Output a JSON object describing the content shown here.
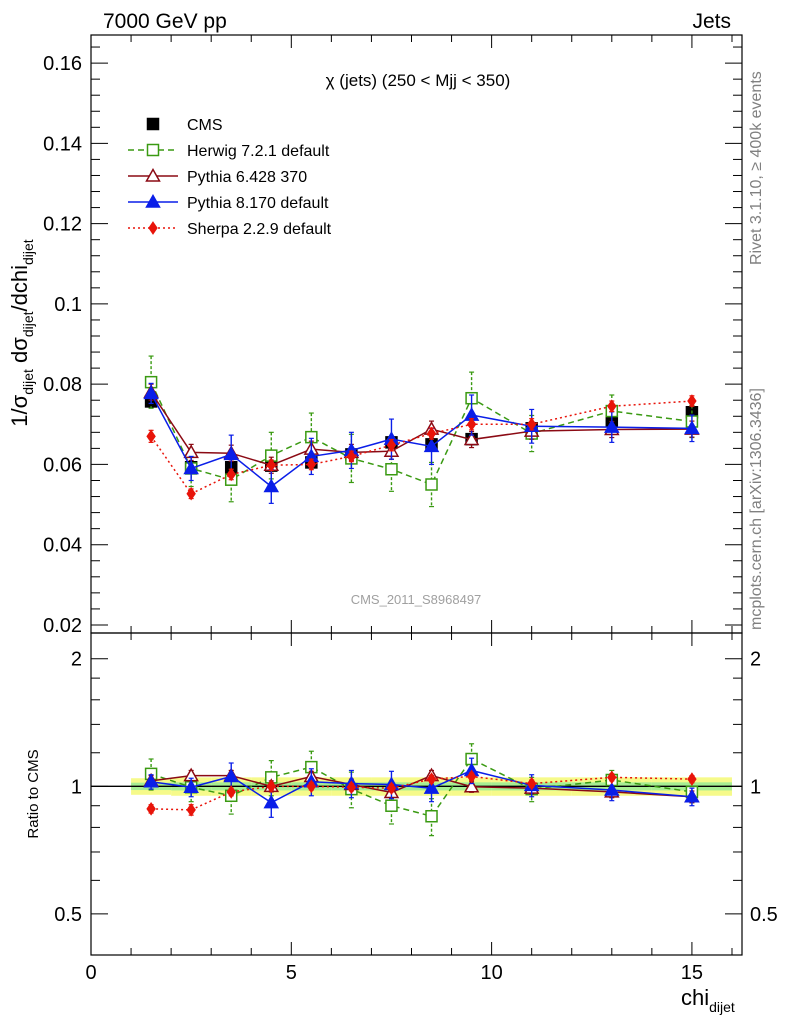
{
  "header": {
    "energy_label": "7000 GeV pp",
    "category_label": "Jets"
  },
  "side_labels": {
    "rivet": "Rivet 3.1.10, ≥ 400k events",
    "mcplots": "mcplots.cern.ch [arXiv:1306.3436]"
  },
  "chart_data": [
    {
      "type": "line",
      "title": "χ (jets) (250 < Mjj <  350)",
      "watermark": "CMS_2011_S8968497",
      "ylabel": {
        "prefix": "1/σ",
        "prefix_sub": "dijet",
        "mid": " dσ",
        "mid_sub": "dijet",
        "suffix": "/dchi",
        "suffix_sub": "dijet"
      },
      "xlim": [
        0,
        16.25
      ],
      "ylim": [
        0.018,
        0.167
      ],
      "yticks": [
        0.02,
        0.04,
        0.06,
        0.08,
        0.1,
        0.12,
        0.14,
        0.16
      ],
      "ytick_labels": [
        "0.02",
        "0.04",
        "0.06",
        "0.08",
        "0.1",
        "0.12",
        "0.14",
        "0.16"
      ],
      "x": [
        1.5,
        2.5,
        3.5,
        4.5,
        5.5,
        6.5,
        7.5,
        8.5,
        9.5,
        11,
        13,
        15
      ],
      "series": [
        {
          "name": "CMS",
          "color": "#000000",
          "marker": "square-filled",
          "dash": "none",
          "values": [
            0.0757,
            0.0593,
            0.0593,
            0.0597,
            0.0605,
            0.0625,
            0.0655,
            0.065,
            0.0663,
            0.069,
            0.0708,
            0.073
          ],
          "errors": [
            0.0015,
            0.0013,
            0.0013,
            0.0013,
            0.0013,
            0.0014,
            0.0014,
            0.0014,
            0.0014,
            0.0015,
            0.0015,
            0.0016
          ]
        },
        {
          "name": "Herwig 7.2.1 default",
          "color": "#3a9a12",
          "marker": "square-open",
          "dash": "6,4",
          "values": [
            0.0805,
            0.059,
            0.0562,
            0.0622,
            0.0668,
            0.0615,
            0.0588,
            0.055,
            0.0765,
            0.0677,
            0.0733,
            0.0707
          ],
          "errors": [
            0.0065,
            0.0045,
            0.0055,
            0.0058,
            0.006,
            0.006,
            0.0055,
            0.0055,
            0.0065,
            0.0045,
            0.004,
            0.004
          ]
        },
        {
          "name": "Pythia 6.428 370",
          "color": "#8b0a14",
          "marker": "triangle-open",
          "dash": "none",
          "values": [
            0.078,
            0.063,
            0.0628,
            0.0598,
            0.0638,
            0.063,
            0.0633,
            0.0688,
            0.0662,
            0.0683,
            0.0687,
            0.0688
          ],
          "errors": [
            0.002,
            0.002,
            0.002,
            0.002,
            0.002,
            0.002,
            0.002,
            0.002,
            0.002,
            0.002,
            0.002,
            0.002
          ]
        },
        {
          "name": "Pythia 8.170 default",
          "color": "#0a1ee8",
          "marker": "triangle-filled",
          "dash": "none",
          "values": [
            0.0777,
            0.059,
            0.0625,
            0.0545,
            0.062,
            0.0635,
            0.0663,
            0.0645,
            0.0723,
            0.0695,
            0.0693,
            0.069
          ],
          "errors": [
            0.0025,
            0.003,
            0.0048,
            0.0042,
            0.0045,
            0.0045,
            0.005,
            0.0045,
            0.005,
            0.0042,
            0.0038,
            0.0033
          ]
        },
        {
          "name": "Sherpa 2.2.9 default",
          "color": "#e8140a",
          "marker": "diamond-filled",
          "dash": "2,3",
          "values": [
            0.067,
            0.0527,
            0.0575,
            0.0598,
            0.06,
            0.062,
            0.0648,
            0.0677,
            0.07,
            0.07,
            0.0745,
            0.0758
          ],
          "errors": [
            0.0015,
            0.0012,
            0.0013,
            0.0013,
            0.0013,
            0.0013,
            0.0014,
            0.0014,
            0.0014,
            0.0014,
            0.0013,
            0.0013
          ]
        }
      ]
    },
    {
      "type": "line",
      "ylabel": "Ratio to CMS",
      "xlabel": "chi",
      "xlabel_sub": "dijet",
      "xlim": [
        0,
        16.25
      ],
      "ylim": [
        0.4,
        2.3
      ],
      "y_scale": "log",
      "yticks": [
        0.5,
        1,
        2
      ],
      "ytick_labels": [
        "0.5",
        "1",
        "2"
      ],
      "xticks": [
        0,
        5,
        10,
        15
      ],
      "xtick_labels": [
        "0",
        "5",
        "10",
        "15"
      ],
      "x": [
        1.5,
        2.5,
        3.5,
        4.5,
        5.5,
        6.5,
        7.5,
        8.5,
        9.5,
        11,
        13,
        15
      ],
      "x_edges": [
        1,
        2,
        3,
        4,
        5,
        6,
        7,
        8,
        9,
        10,
        12,
        14,
        16
      ],
      "band_inner": [
        0.02,
        0.022,
        0.022,
        0.022,
        0.022,
        0.022,
        0.022,
        0.022,
        0.022,
        0.022,
        0.022,
        0.022
      ],
      "band_outer": [
        0.045,
        0.05,
        0.05,
        0.05,
        0.05,
        0.05,
        0.05,
        0.05,
        0.05,
        0.05,
        0.05,
        0.05
      ],
      "series": [
        {
          "name": "Herwig 7.2.1 default",
          "color": "#3a9a12",
          "marker": "square-open",
          "dash": "6,4",
          "values": [
            1.07,
            0.995,
            0.95,
            1.05,
            1.11,
            0.985,
            0.9,
            0.85,
            1.16,
            0.985,
            1.035,
            0.97
          ],
          "errors": [
            0.09,
            0.075,
            0.09,
            0.1,
            0.1,
            0.095,
            0.085,
            0.085,
            0.1,
            0.065,
            0.055,
            0.055
          ]
        },
        {
          "name": "Pythia 6.428 370",
          "color": "#8b0a14",
          "marker": "triangle-open",
          "dash": "none",
          "values": [
            1.03,
            1.06,
            1.06,
            1.0,
            1.055,
            1.01,
            0.967,
            1.06,
            0.998,
            0.99,
            0.97,
            0.945
          ],
          "errors": [
            0.03,
            0.03,
            0.03,
            0.03,
            0.03,
            0.03,
            0.03,
            0.03,
            0.03,
            0.03,
            0.03,
            0.03
          ]
        },
        {
          "name": "Pythia 8.170 default",
          "color": "#0a1ee8",
          "marker": "triangle-filled",
          "dash": "none",
          "values": [
            1.025,
            0.995,
            1.055,
            0.915,
            1.025,
            1.015,
            1.01,
            0.99,
            1.09,
            1.005,
            0.98,
            0.945
          ],
          "errors": [
            0.04,
            0.05,
            0.08,
            0.07,
            0.075,
            0.075,
            0.075,
            0.07,
            0.075,
            0.06,
            0.055,
            0.045
          ]
        },
        {
          "name": "Sherpa 2.2.9 default",
          "color": "#e8140a",
          "marker": "diamond-filled",
          "dash": "2,3",
          "values": [
            0.885,
            0.88,
            0.97,
            1.0,
            1.0,
            0.995,
            0.99,
            1.04,
            1.055,
            1.015,
            1.05,
            1.04
          ],
          "errors": [
            0.02,
            0.025,
            0.02,
            0.02,
            0.02,
            0.02,
            0.02,
            0.02,
            0.02,
            0.02,
            0.02,
            0.02
          ]
        }
      ]
    }
  ]
}
